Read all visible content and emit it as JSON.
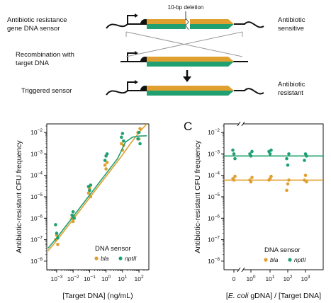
{
  "colors": {
    "bla": "#e0a030",
    "nptII": "#20a070",
    "axis": "#111111"
  },
  "schematic": {
    "deletion_label": "10-bp deletion",
    "row1_left": [
      "Antibiotic resistance",
      "gene DNA sensor"
    ],
    "row1_right": [
      "Antibiotic",
      "sensitive"
    ],
    "row2_left": [
      "Recombination with",
      "target DNA"
    ],
    "row3_left": "Triggered sensor",
    "row3_right": [
      "Antibiotic",
      "resistant"
    ]
  },
  "chart_data": [
    {
      "type": "scatter",
      "panel": "",
      "xlabel": "[Target DNA] (ng/mL)",
      "ylabel": "Antibiotic-resistant CFU frequency",
      "x_scale": "log",
      "y_scale": "log",
      "xlim_exp": [
        -3.6,
        2.6
      ],
      "ylim_exp": [
        -8.4,
        -1.6
      ],
      "x_ticks_exp": [
        -3,
        -2,
        -1,
        0,
        1,
        2
      ],
      "y_ticks_exp": [
        -8,
        -7,
        -6,
        -5,
        -4,
        -3,
        -2
      ],
      "legend_title": "DNA sensor",
      "series": [
        {
          "name": "bla",
          "points": [
            [
              0.001,
              1e-07
            ],
            [
              0.001,
              1.6e-07
            ],
            [
              0.001,
              6e-08
            ],
            [
              0.01,
              1e-06
            ],
            [
              0.01,
              7e-07
            ],
            [
              0.01,
              1.2e-06
            ],
            [
              0.1,
              1.5e-05
            ],
            [
              0.1,
              2.5e-05
            ],
            [
              0.1,
              1e-05
            ],
            [
              1,
              0.0003
            ],
            [
              1,
              0.0002
            ],
            [
              1,
              0.0004
            ],
            [
              10,
              0.003
            ],
            [
              10,
              0.0015
            ],
            [
              10,
              0.0025
            ],
            [
              100,
              0.01
            ],
            [
              100,
              0.005
            ],
            [
              100,
              0.015
            ]
          ],
          "fit": [
            [
              0.0003,
              3e-08
            ],
            [
              0.001,
              9e-08
            ],
            [
              0.01,
              9e-07
            ],
            [
              0.1,
              9e-06
            ],
            [
              1,
              9e-05
            ],
            [
              10,
              0.0009
            ],
            [
              30,
              0.003
            ],
            [
              100,
              0.01
            ],
            [
              300,
              0.025
            ]
          ]
        },
        {
          "name": "nptII",
          "points": [
            [
              0.001,
              5e-07
            ],
            [
              0.001,
              2e-07
            ],
            [
              0.001,
              1.2e-07
            ],
            [
              0.01,
              1.4e-06
            ],
            [
              0.01,
              2e-06
            ],
            [
              0.01,
              1e-06
            ],
            [
              0.1,
              3e-05
            ],
            [
              0.1,
              2e-05
            ],
            [
              0.1,
              3.5e-05
            ],
            [
              1,
              0.0005
            ],
            [
              1,
              0.0008
            ],
            [
              1,
              0.001
            ],
            [
              10,
              0.006
            ],
            [
              10,
              0.009
            ],
            [
              10,
              0.004
            ],
            [
              100,
              0.005
            ],
            [
              100,
              0.01
            ],
            [
              100,
              0.003
            ]
          ],
          "fit": [
            [
              0.0003,
              4e-08
            ],
            [
              0.001,
              1.2e-07
            ],
            [
              0.01,
              1.2e-06
            ],
            [
              0.1,
              1.2e-05
            ],
            [
              1,
              0.00012
            ],
            [
              5,
              0.0006
            ],
            [
              15,
              0.0035
            ],
            [
              40,
              0.006
            ],
            [
              100,
              0.0068
            ],
            [
              300,
              0.007
            ]
          ]
        }
      ]
    },
    {
      "type": "scatter",
      "panel": "C",
      "xlabel_parts": [
        "[",
        "E. coli",
        " gDNA] / [Target DNA]"
      ],
      "ylabel": "Antibiotic-resistant CFU frequency",
      "x_scale": "log (broken axis, 0 at left)",
      "y_scale": "log",
      "x_ticks": [
        "0",
        "10^0",
        "10^1",
        "10^2",
        "10^3"
      ],
      "y_ticks_exp": [
        -8,
        -7,
        -6,
        -5,
        -4,
        -3,
        -2
      ],
      "ylim_exp": [
        -8.4,
        -1.6
      ],
      "legend_title": "DNA sensor",
      "series": [
        {
          "name": "bla",
          "mean": 6e-05,
          "points": [
            [
              0,
              7e-05
            ],
            [
              0,
              6e-05
            ],
            [
              0,
              9e-05
            ],
            [
              1,
              6e-05
            ],
            [
              1,
              5e-05
            ],
            [
              1,
              8e-05
            ],
            [
              10,
              6e-05
            ],
            [
              10,
              7e-05
            ],
            [
              10,
              9e-05
            ],
            [
              100,
              2e-05
            ],
            [
              100,
              4e-05
            ],
            [
              100,
              6e-05
            ],
            [
              1000,
              6e-05
            ],
            [
              1000,
              0.0001
            ],
            [
              1000,
              5e-05
            ]
          ]
        },
        {
          "name": "nptII",
          "mean": 0.0008,
          "points": [
            [
              0,
              0.0015
            ],
            [
              0,
              0.001
            ],
            [
              0,
              0.0006
            ],
            [
              1,
              0.001
            ],
            [
              1,
              0.0008
            ],
            [
              1,
              0.0013
            ],
            [
              10,
              0.0013
            ],
            [
              10,
              0.001
            ],
            [
              10,
              0.0015
            ],
            [
              100,
              0.0006
            ],
            [
              100,
              0.0003
            ],
            [
              100,
              0.001
            ],
            [
              1000,
              0.0005
            ],
            [
              1000,
              0.001
            ],
            [
              1000,
              0.0008
            ]
          ]
        }
      ]
    }
  ]
}
